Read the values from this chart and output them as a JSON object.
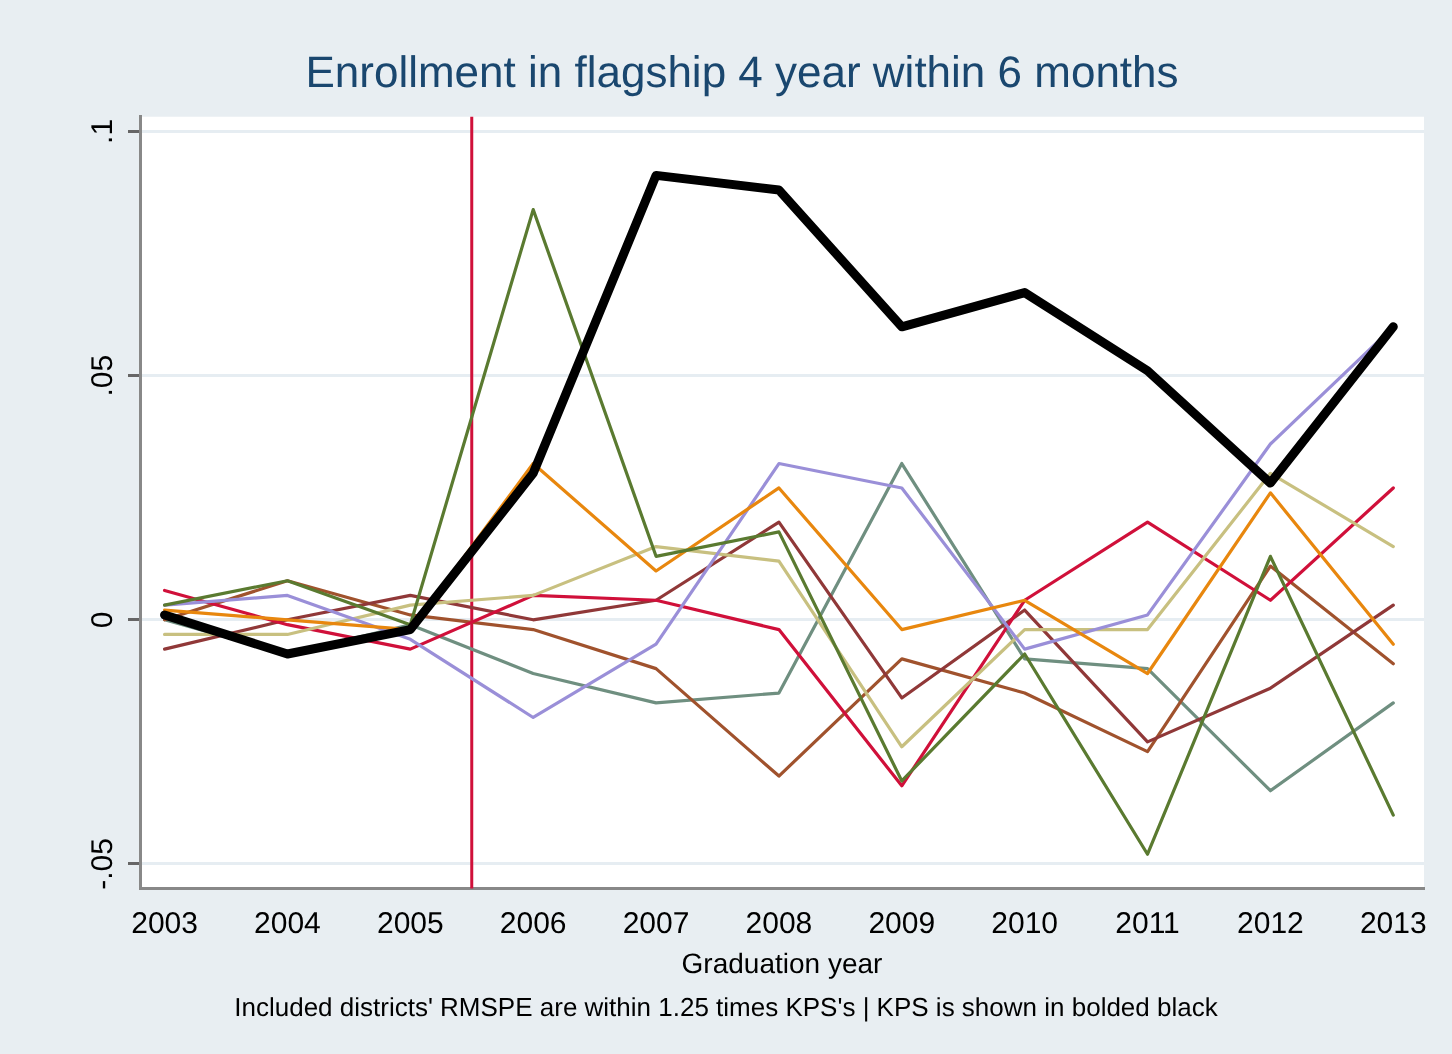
{
  "chart_data": {
    "type": "line",
    "title": "Enrollment in flagship 4 year within 6 months",
    "xlabel": "Graduation year",
    "x": [
      2003,
      2004,
      2005,
      2006,
      2007,
      2008,
      2009,
      2010,
      2011,
      2012,
      2013
    ],
    "series": [
      {
        "color": "#000000",
        "values": [
          0.001,
          -0.007,
          -0.002,
          0.03,
          0.091,
          0.088,
          0.06,
          0.067,
          0.051,
          0.028,
          0.06
        ]
      },
      {
        "color": "#5a7a30",
        "values": [
          0.003,
          0.008,
          -0.001,
          0.084,
          0.013,
          0.018,
          -0.033,
          -0.007,
          -0.048,
          0.013,
          -0.04
        ]
      },
      {
        "color": "#e8870e",
        "values": [
          0.002,
          0.0,
          -0.002,
          0.032,
          0.01,
          0.027,
          -0.002,
          0.004,
          -0.011,
          0.026,
          -0.005
        ]
      },
      {
        "color": "#9a8fd8",
        "values": [
          0.003,
          0.005,
          -0.004,
          -0.02,
          -0.005,
          0.032,
          0.027,
          -0.006,
          0.001,
          0.036,
          0.06
        ]
      },
      {
        "color": "#c8c080",
        "values": [
          -0.003,
          -0.003,
          0.003,
          0.005,
          0.015,
          0.012,
          -0.026,
          -0.002,
          -0.002,
          0.03,
          0.015
        ]
      },
      {
        "color": "#d0103a",
        "values": [
          0.006,
          -0.001,
          -0.006,
          0.005,
          0.004,
          -0.002,
          -0.034,
          0.004,
          0.02,
          0.004,
          0.027
        ]
      },
      {
        "color": "#903838",
        "values": [
          -0.006,
          0.0,
          0.005,
          0.0,
          0.004,
          0.02,
          -0.016,
          0.002,
          -0.025,
          -0.014,
          0.003
        ]
      },
      {
        "color": "#a0522d",
        "values": [
          0.0,
          0.008,
          0.001,
          -0.002,
          -0.01,
          -0.032,
          -0.008,
          -0.015,
          -0.027,
          0.011,
          -0.009
        ]
      },
      {
        "color": "#6f8f80",
        "values": [
          0.0,
          -0.007,
          -0.001,
          -0.011,
          -0.017,
          -0.015,
          0.032,
          -0.008,
          -0.01,
          -0.035,
          -0.017
        ]
      }
    ],
    "xlim": [
      2002.8,
      2013.25
    ],
    "xticks": [
      2003,
      2004,
      2005,
      2006,
      2007,
      2008,
      2009,
      2010,
      2011,
      2012,
      2013
    ],
    "ylim": [
      -0.055,
      0.103
    ],
    "yticks": [
      {
        "value": -0.05,
        "label": "-.05"
      },
      {
        "value": 0,
        "label": "0"
      },
      {
        "value": 0.05,
        "label": ".05"
      },
      {
        "value": 0.1,
        "label": ".1"
      }
    ],
    "grid": "y",
    "legend": false,
    "marker": "none",
    "line_style": "solid",
    "ref_lines": [
      {
        "axis": "x",
        "value": 2005.5,
        "color": "#d0103a"
      }
    ],
    "annotations": [
      "Included districts' RMSPE are within 1.25 times KPS's | KPS is shown in bolded black"
    ]
  }
}
